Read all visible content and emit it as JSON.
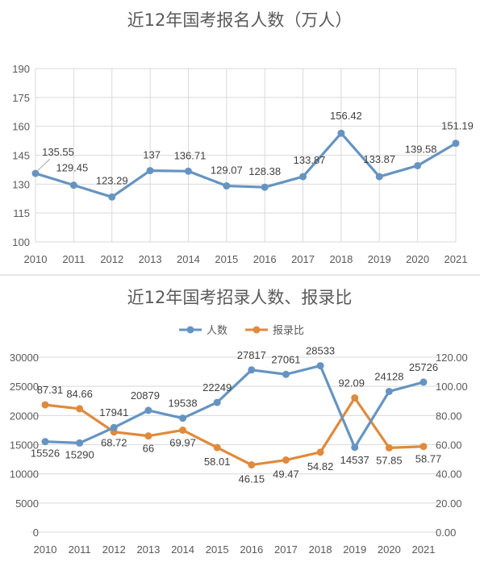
{
  "chart_data": [
    {
      "type": "line",
      "title": "近12年国考报名人数（万人）",
      "categories": [
        "2010",
        "2011",
        "2012",
        "2013",
        "2014",
        "2015",
        "2016",
        "2017",
        "2018",
        "2019",
        "2020",
        "2021"
      ],
      "series": [
        {
          "values": [
            135.55,
            129.45,
            123.29,
            137,
            136.71,
            129.07,
            128.38,
            133.87,
            156.42,
            133.87,
            139.58,
            151.19
          ],
          "color": "#6694c1"
        }
      ],
      "data_labels": [
        "135.55",
        "129.45",
        "123.29",
        "137",
        "136.71",
        "129.07",
        "128.38",
        "133.87",
        "156.42",
        "133.87",
        "139.58",
        "151.19"
      ],
      "ylim": [
        100,
        190
      ],
      "yticks": [
        "100",
        "115",
        "130",
        "145",
        "160",
        "175",
        "190"
      ],
      "grid": true,
      "legend": "none"
    },
    {
      "type": "line",
      "title": "近12年国考招录人数、报录比",
      "categories": [
        "2010",
        "2011",
        "2012",
        "2013",
        "2014",
        "2015",
        "2016",
        "2017",
        "2018",
        "2019",
        "2020",
        "2021"
      ],
      "series": [
        {
          "name": "人数",
          "axis": "left",
          "values": [
            15526,
            15290,
            17941,
            20879,
            19538,
            22249,
            27817,
            27061,
            28533,
            14537,
            24128,
            25726
          ],
          "color": "#6694c1"
        },
        {
          "name": "报录比",
          "axis": "right",
          "values": [
            87.31,
            84.66,
            68.72,
            66,
            69.97,
            58.01,
            46.15,
            49.47,
            54.82,
            92.09,
            57.85,
            58.77
          ],
          "color": "#e08a3c"
        }
      ],
      "labels_count": [
        "15526",
        "15290",
        "17941",
        "20879",
        "19538",
        "22249",
        "27817",
        "27061",
        "28533",
        "14537",
        "24128",
        "25726"
      ],
      "labels_ratio": [
        "87.31",
        "84.66",
        "68.72",
        "66",
        "69.97",
        "58.01",
        "46.15",
        "49.47",
        "54.82",
        "92.09",
        "57.85",
        "58.77"
      ],
      "ylim_left": [
        0,
        30000
      ],
      "yticks_left": [
        "0",
        "5000",
        "10000",
        "15000",
        "20000",
        "25000",
        "30000"
      ],
      "ylim_right": [
        0,
        120
      ],
      "yticks_right": [
        "0.00",
        "20.00",
        "40.00",
        "60.00",
        "80.00",
        "100.00",
        "120.00"
      ],
      "grid": true,
      "legend": "top-center"
    }
  ]
}
